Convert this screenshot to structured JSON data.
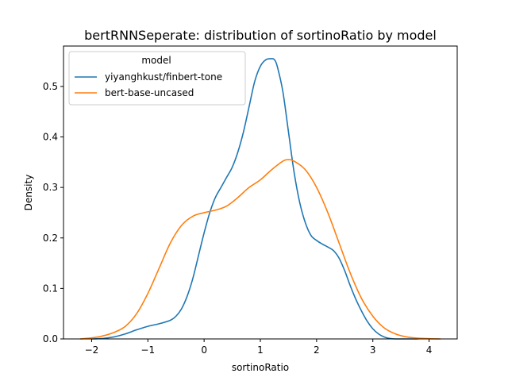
{
  "chart_data": {
    "type": "line",
    "title": "bertRNNSeperate: distribution of sortinoRatio by model",
    "xlabel": "sortinoRatio",
    "ylabel": "Density",
    "xlim": [
      -2.5,
      4.5
    ],
    "ylim": [
      0,
      0.58
    ],
    "xticks": [
      -2,
      -1,
      0,
      1,
      2,
      3,
      4
    ],
    "xtick_labels": [
      "−2",
      "−1",
      "0",
      "1",
      "2",
      "3",
      "4"
    ],
    "yticks": [
      0.0,
      0.1,
      0.2,
      0.3,
      0.4,
      0.5
    ],
    "ytick_labels": [
      "0.0",
      "0.1",
      "0.2",
      "0.3",
      "0.4",
      "0.5"
    ],
    "grid": false,
    "legend": {
      "title": "model",
      "position": "upper-left"
    },
    "series": [
      {
        "name": "yiyanghkust/finbert-tone",
        "color": "#1f77b4",
        "x": [
          -2.0,
          -1.8,
          -1.6,
          -1.4,
          -1.2,
          -1.0,
          -0.8,
          -0.6,
          -0.5,
          -0.4,
          -0.3,
          -0.2,
          -0.1,
          0.0,
          0.1,
          0.2,
          0.3,
          0.4,
          0.5,
          0.6,
          0.7,
          0.8,
          0.9,
          1.0,
          1.1,
          1.2,
          1.25,
          1.3,
          1.4,
          1.5,
          1.6,
          1.7,
          1.8,
          1.9,
          2.0,
          2.1,
          2.2,
          2.3,
          2.4,
          2.5,
          2.6,
          2.7,
          2.8,
          2.9,
          3.0,
          3.1,
          3.2,
          3.3,
          3.4,
          3.6,
          3.8
        ],
        "y": [
          0.0,
          0.001,
          0.004,
          0.01,
          0.018,
          0.025,
          0.03,
          0.037,
          0.045,
          0.06,
          0.085,
          0.12,
          0.165,
          0.21,
          0.25,
          0.28,
          0.3,
          0.32,
          0.34,
          0.37,
          0.41,
          0.46,
          0.51,
          0.54,
          0.553,
          0.555,
          0.553,
          0.54,
          0.49,
          0.41,
          0.33,
          0.27,
          0.23,
          0.205,
          0.195,
          0.188,
          0.182,
          0.175,
          0.16,
          0.135,
          0.105,
          0.078,
          0.055,
          0.035,
          0.02,
          0.01,
          0.004,
          0.001,
          0.0,
          0.0,
          0.0
        ]
      },
      {
        "name": "bert-base-uncased",
        "color": "#ff7f0e",
        "x": [
          -2.2,
          -2.0,
          -1.8,
          -1.6,
          -1.4,
          -1.2,
          -1.0,
          -0.8,
          -0.6,
          -0.4,
          -0.2,
          0.0,
          0.2,
          0.4,
          0.6,
          0.8,
          1.0,
          1.2,
          1.4,
          1.5,
          1.6,
          1.8,
          2.0,
          2.2,
          2.4,
          2.6,
          2.8,
          3.0,
          3.2,
          3.4,
          3.6,
          3.8,
          4.0,
          4.2
        ],
        "y": [
          0.0,
          0.002,
          0.006,
          0.013,
          0.025,
          0.05,
          0.09,
          0.14,
          0.19,
          0.225,
          0.243,
          0.25,
          0.255,
          0.263,
          0.28,
          0.3,
          0.315,
          0.335,
          0.352,
          0.355,
          0.352,
          0.335,
          0.3,
          0.25,
          0.19,
          0.13,
          0.08,
          0.045,
          0.022,
          0.01,
          0.004,
          0.0015,
          0.0005,
          0.0
        ]
      }
    ]
  }
}
